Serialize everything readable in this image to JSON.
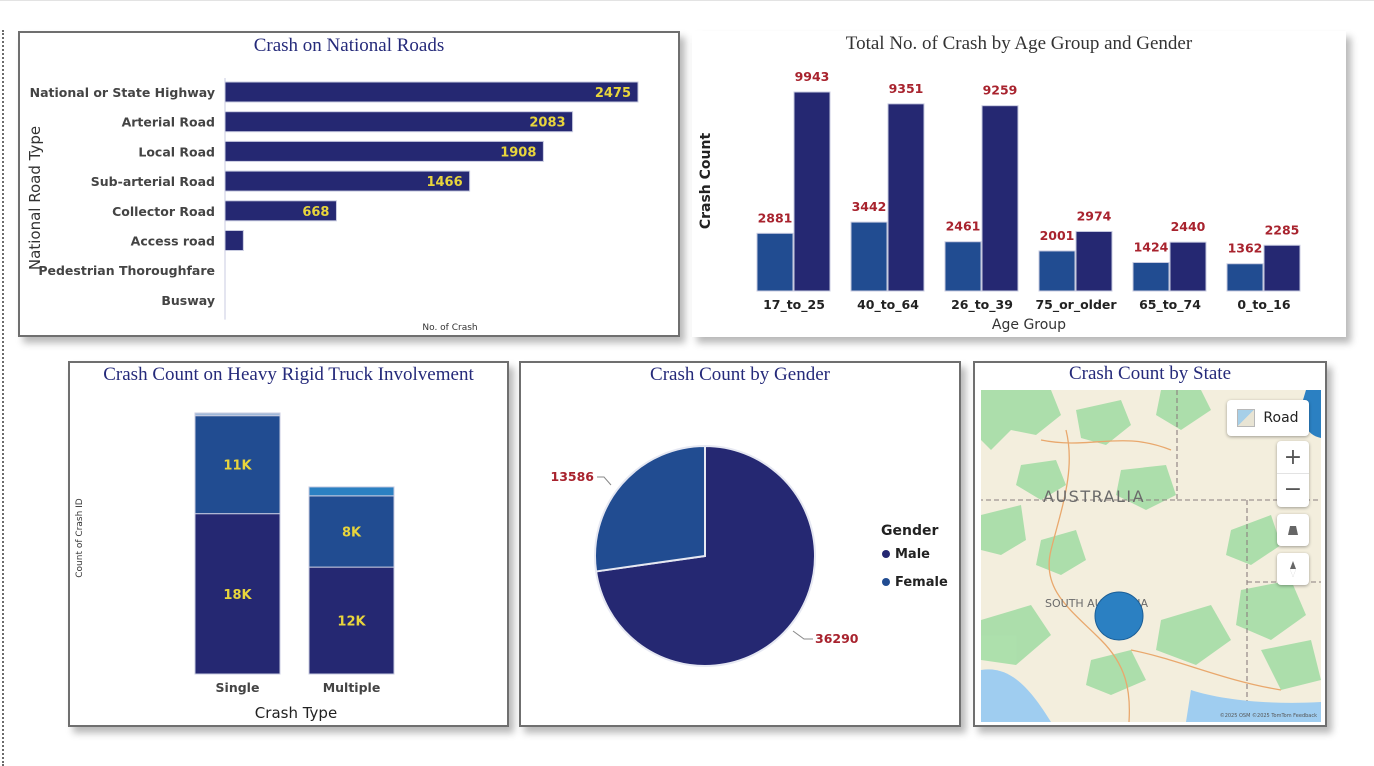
{
  "road_chart": {
    "title": "Crash on National Roads",
    "ylabel": "National Road Type",
    "xlabel": "No. of Crash"
  },
  "age_chart": {
    "title": "Total No. of Crash by Age Group and Gender",
    "ylabel": "Crash Count",
    "xlabel": "Age Group"
  },
  "truck_chart": {
    "title": "Crash Count on Heavy Rigid Truck Involvement",
    "ylabel": "Count of Crash ID",
    "xlabel": "Crash Type"
  },
  "gender_chart": {
    "title": "Crash Count by Gender",
    "legend_title": "Gender",
    "legend": [
      "Male",
      "Female"
    ]
  },
  "state_map": {
    "title": "Crash Count by State",
    "road_button": "Road",
    "zoom_in": "+",
    "zoom_out": "−",
    "country_label": "AUSTRALIA",
    "state_label": "SOUTH AUSTRALIA",
    "attribution": "©2025 OSM ©2025 TomTom Feedback"
  },
  "colors": {
    "navy": "#252872",
    "blue": "#214c91",
    "light_blue": "#2b80c2",
    "pale_blue": "#9fb8d9",
    "label_yellow": "#e8d53c",
    "label_red": "#a8232e"
  },
  "chart_data": [
    {
      "type": "bar",
      "orientation": "horizontal",
      "categories": [
        "National or State Highway",
        "Arterial Road",
        "Local Road",
        "Sub-arterial Road",
        "Collector Road",
        "Access road",
        "Pedestrian Thoroughfare",
        "Busway"
      ],
      "values": [
        2475,
        2083,
        1908,
        1466,
        668,
        110,
        2,
        1
      ],
      "data_labels": [
        "2475",
        "2083",
        "1908",
        "1466",
        "668",
        "",
        "",
        ""
      ]
    },
    {
      "type": "bar",
      "categories": [
        "17_to_25",
        "40_to_64",
        "26_to_39",
        "75_or_older",
        "65_to_74",
        "0_to_16"
      ],
      "series": [
        {
          "values": [
            2881,
            3442,
            2461,
            2001,
            1424,
            1362
          ]
        },
        {
          "values": [
            9943,
            9351,
            9259,
            2974,
            2440,
            2285
          ]
        }
      ]
    },
    {
      "type": "bar",
      "stacked": true,
      "categories": [
        "Single",
        "Multiple"
      ],
      "series": [
        {
          "values": [
            18000,
            12000
          ],
          "labels": [
            "18K",
            "12K"
          ]
        },
        {
          "values": [
            11000,
            8000
          ],
          "labels": [
            "11K",
            "8K"
          ]
        },
        {
          "values": [
            300,
            1000
          ],
          "labels": [
            "",
            ""
          ]
        }
      ]
    },
    {
      "type": "pie",
      "categories": [
        "Male",
        "Female"
      ],
      "values": [
        36290,
        13586
      ],
      "data_labels": [
        "36290",
        "13586"
      ]
    }
  ]
}
